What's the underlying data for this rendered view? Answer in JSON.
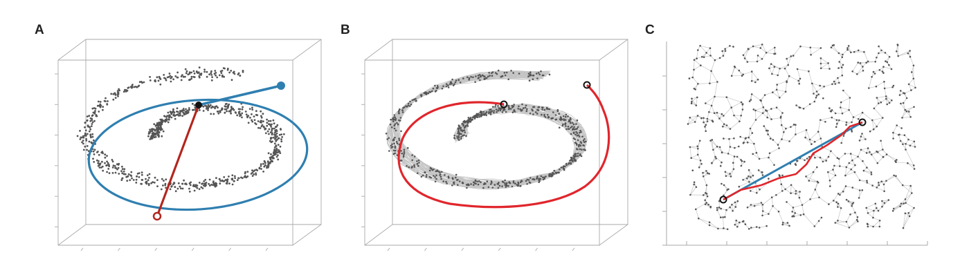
{
  "panels": [
    {
      "label": "A",
      "points": 900,
      "seed": 11
    },
    {
      "label": "B",
      "points": 700,
      "seed": 23
    },
    {
      "label": "C",
      "points": 650,
      "seed": 37
    }
  ],
  "colors": {
    "box": "#a9a9a9",
    "points": "#555555",
    "edges": "#c4c4c4",
    "geodesic_blue": "#2f7fb0",
    "euclidean_red": "#b3261e",
    "path_red": "#e0262c",
    "marker_black": "#111111"
  }
}
